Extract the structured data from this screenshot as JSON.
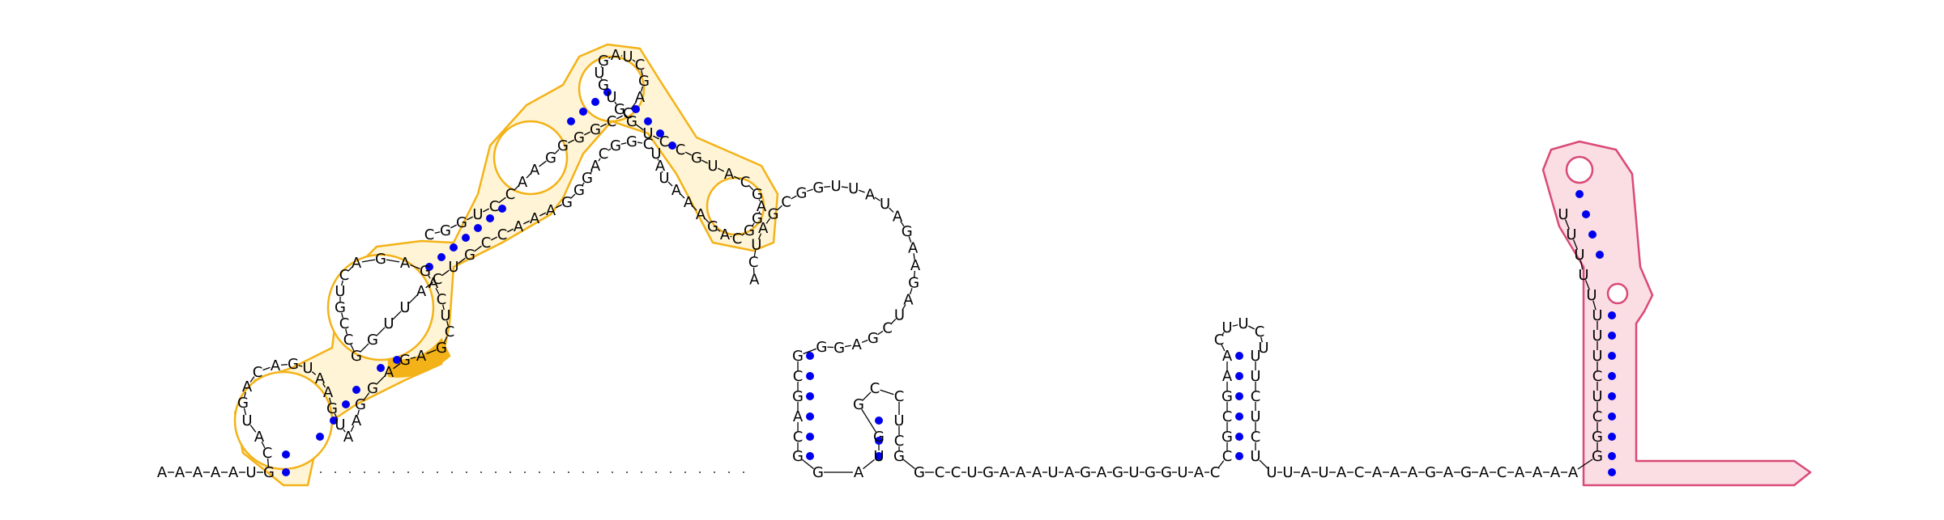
{
  "diagram": {
    "type": "rna-secondary-structure",
    "colors": {
      "base_pair_dot": "#0000ee",
      "highlight_yellow": "#f3b217",
      "highlight_pink": "#d94a76",
      "text": "#000000"
    },
    "nucleotides": [
      "A",
      "A",
      "A",
      "A",
      "A",
      "U",
      "G",
      "C",
      "A",
      "U",
      "G",
      "A",
      "C",
      "A",
      "G",
      "U",
      "A",
      "A",
      "G",
      "U",
      "A",
      "A",
      "G",
      "G",
      "A",
      "G",
      "A",
      "G",
      "C",
      "U",
      "C",
      "A",
      "G",
      "A",
      "G",
      "A",
      "C",
      "U",
      "G",
      "C",
      "C",
      "G",
      "G",
      "U",
      "U",
      "A",
      "C",
      "U",
      "G",
      "C",
      "C",
      "A",
      "A",
      "A",
      "G",
      "G",
      "G",
      "A",
      "C",
      "G",
      "G",
      "C",
      "U",
      "A",
      "U",
      "A",
      "A",
      "A",
      "G",
      "A",
      "C",
      "G",
      "G",
      "A",
      "G",
      "C",
      "A",
      "U",
      "G",
      "C",
      "C",
      "U",
      "G",
      "G",
      "U",
      "G",
      "U",
      "G",
      "A",
      "U",
      "C",
      "G",
      "A",
      "C",
      "C",
      "G",
      "G",
      "G",
      "G",
      "A",
      "A",
      "C",
      "C",
      "U",
      "G",
      "G",
      "C",
      "A",
      "C",
      "U",
      "A",
      "G",
      "C",
      "G",
      "G",
      "U",
      "U",
      "A",
      "U",
      "A",
      "G",
      "A",
      "A",
      "G",
      "A",
      "U",
      "C",
      "G",
      "A",
      "G",
      "G",
      "G",
      "C",
      "G",
      "A",
      "C",
      "G",
      "G",
      "A",
      "U",
      "G",
      "G",
      "C",
      "C",
      "U",
      "C",
      "G",
      "G",
      "C",
      "C",
      "U",
      "G",
      "A",
      "A",
      "A",
      "U",
      "A",
      "G",
      "A",
      "G",
      "U",
      "G",
      "G",
      "U",
      "A",
      "C",
      "C",
      "G",
      "C",
      "G",
      "A",
      "A",
      "C",
      "U",
      "U",
      "C",
      "U",
      "U",
      "U",
      "C",
      "U",
      "C",
      "U",
      "U",
      "U",
      "A",
      "U",
      "A",
      "C",
      "A",
      "A",
      "A",
      "G",
      "A",
      "G",
      "A",
      "C",
      "A",
      "A",
      "A",
      "A",
      "G",
      "G",
      "C",
      "U",
      "C",
      "U",
      "U",
      "U",
      "U",
      "U",
      "U",
      "U",
      "U"
    ],
    "highlights": [
      "yellow-region",
      "pink-region"
    ]
  }
}
